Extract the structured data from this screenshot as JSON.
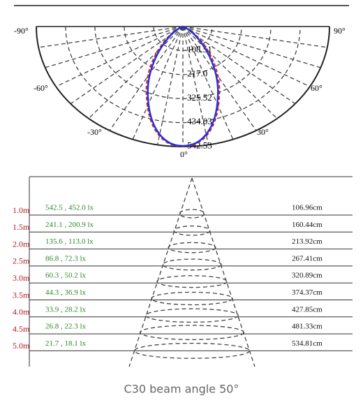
{
  "polar": {
    "angle_labels": [
      "-90°",
      "90°",
      "-60°",
      "60°",
      "-30°",
      "30°",
      "0°"
    ],
    "radius_labels": [
      "108.51",
      "217.0",
      "325.52",
      "434.03",
      "542.53"
    ]
  },
  "table": {
    "rows": [
      {
        "distance": "1.0m",
        "illuminance": "542.5 , 452.0 lx",
        "diameter": "106.96cm"
      },
      {
        "distance": "1.5m",
        "illuminance": "241.1 , 200.9 lx",
        "diameter": "160.44cm"
      },
      {
        "distance": "2.0m",
        "illuminance": "135.6 , 113.0 lx",
        "diameter": "213.92cm"
      },
      {
        "distance": "2.5m",
        "illuminance": "86.8 , 72.3 lx",
        "diameter": "267.41cm"
      },
      {
        "distance": "3.0m",
        "illuminance": "60.3 , 50.2 lx",
        "diameter": "320.89cm"
      },
      {
        "distance": "3.5m",
        "illuminance": "44.3 , 36.9 lx",
        "diameter": "374.37cm"
      },
      {
        "distance": "4.0m",
        "illuminance": "33.9 , 28.2 lx",
        "diameter": "427.85cm"
      },
      {
        "distance": "4.5m",
        "illuminance": "26.8 , 22.3 lx",
        "diameter": "481.33cm"
      },
      {
        "distance": "5.0m",
        "illuminance": "21.7 , 18.1 lx",
        "diameter": "534.81cm"
      }
    ]
  },
  "caption": "C30 beam angle 50°"
}
